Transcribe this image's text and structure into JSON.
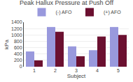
{
  "chart_data": {
    "type": "bar",
    "title": "Peak Hallux Pressure at Push Off",
    "xlabel": "Subject",
    "ylabel": "kPa",
    "categories": [
      "1",
      "2",
      "3",
      "4",
      "5"
    ],
    "series": [
      {
        "name": "(-) AFO",
        "color": "#9999dd",
        "values": [
          480,
          1250,
          640,
          520,
          1250
        ]
      },
      {
        "name": "(+) AFO",
        "color": "#6b1030",
        "values": [
          200,
          1100,
          330,
          950,
          1000
        ]
      }
    ],
    "ylim": [
      0,
      1400
    ],
    "yticks": [
      0,
      200,
      400,
      600,
      800,
      1000,
      1200,
      1400
    ],
    "grid": true,
    "legend": "top"
  }
}
